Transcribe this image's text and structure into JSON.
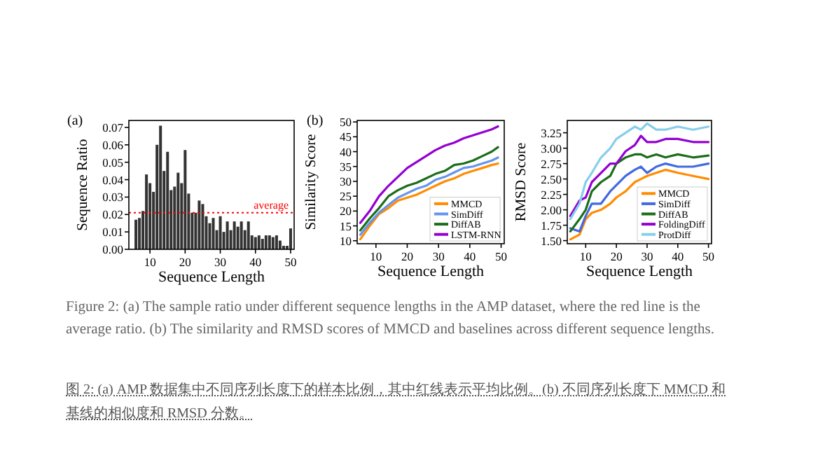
{
  "chart_data": [
    {
      "type": "bar",
      "annotations": [
        "(a)"
      ],
      "xlabel": "Sequence Length",
      "ylabel": "Sequence Ratio",
      "color": "#333333",
      "x": [
        6,
        7,
        8,
        9,
        10,
        11,
        12,
        13,
        14,
        15,
        16,
        17,
        18,
        19,
        20,
        21,
        22,
        23,
        24,
        25,
        26,
        27,
        28,
        29,
        30,
        31,
        32,
        33,
        34,
        35,
        36,
        37,
        38,
        39,
        40,
        41,
        42,
        43,
        44,
        45,
        46,
        47,
        48,
        49,
        50
      ],
      "values": [
        0.017,
        0.018,
        0.022,
        0.043,
        0.038,
        0.033,
        0.06,
        0.071,
        0.045,
        0.056,
        0.034,
        0.036,
        0.044,
        0.038,
        0.057,
        0.032,
        0.021,
        0.021,
        0.028,
        0.026,
        0.019,
        0.015,
        0.018,
        0.011,
        0.019,
        0.01,
        0.016,
        0.011,
        0.016,
        0.013,
        0.016,
        0.011,
        0.016,
        0.008,
        0.007,
        0.008,
        0.006,
        0.008,
        0.008,
        0.007,
        0.008,
        0.005,
        0.002,
        0.002,
        0.012
      ],
      "xlim": [
        4,
        51
      ],
      "ylim": [
        0,
        0.074
      ],
      "xticks": [
        10,
        20,
        30,
        40,
        50
      ],
      "yticks": [
        {
          "value": 0,
          "label": "0.00"
        },
        0.01,
        0.02,
        0.03,
        0.04,
        0.05,
        0.06,
        0.07
      ],
      "ref_lines": [
        {
          "axis": "y",
          "value": 0.021,
          "label": "average",
          "color": "#ff0000",
          "line_style": "dotted"
        }
      ]
    },
    {
      "type": "line",
      "annotations": [
        "(b)"
      ],
      "xlabel": "Sequence Length",
      "ylabel": "Similarity Score",
      "legend": "bottom right",
      "line_style": "solid",
      "x": [
        5,
        8,
        11,
        14,
        17,
        20,
        23,
        26,
        29,
        32,
        35,
        38,
        41,
        44,
        47,
        49
      ],
      "xlim": [
        4,
        51
      ],
      "ylim": [
        9,
        50.5
      ],
      "xticks": [
        10,
        20,
        30,
        40,
        50
      ],
      "yticks": [
        10,
        15,
        20,
        25,
        30,
        35,
        40,
        45,
        50
      ],
      "series": [
        {
          "name": "MMCD",
          "color": "#ff8c00",
          "values": [
            10.5,
            15,
            19,
            21,
            23.5,
            24.5,
            25.5,
            27,
            28.5,
            30,
            31,
            32.5,
            33.5,
            34.5,
            35.5,
            36
          ]
        },
        {
          "name": "SimDiff",
          "color": "#6495ed",
          "values": [
            12,
            16,
            19.5,
            22,
            24.5,
            26,
            27.5,
            28.5,
            30.5,
            31.5,
            33,
            34.5,
            35,
            36,
            37,
            38
          ]
        },
        {
          "name": "DiffAB",
          "color": "#1a6e1a",
          "values": [
            13.5,
            17.5,
            21,
            25,
            27,
            28.5,
            29.5,
            31,
            32.5,
            33.5,
            35.5,
            36,
            37,
            38.5,
            40,
            41.5
          ]
        },
        {
          "name": "LSTM-RNN",
          "color": "#9400d3",
          "values": [
            16,
            20,
            25,
            28.5,
            31.5,
            34.5,
            36.5,
            38.5,
            40.5,
            42,
            43,
            44.5,
            45.5,
            46.5,
            47.5,
            48.5
          ]
        }
      ]
    },
    {
      "type": "line",
      "xlabel": "Sequence Length",
      "ylabel": "RMSD Score",
      "legend": "bottom right",
      "line_style": "solid",
      "annotations": [
        "Figure 2: (a) The sample ratio under different sequence lengths in the AMP dataset, where the red line is the average ratio. (b) The similarity and RMSD scores of MMCD and baselines across different sequence lengths.",
        "图 2: (a) AMP 数据集中不同序列长度下的样本比例，其中红线表示平均比例。(b) 不同序列长度下 MMCD 和基线的相似度和 RMSD 分数。"
      ],
      "x": [
        5,
        8,
        10,
        12,
        15,
        18,
        20,
        23,
        26,
        28,
        30,
        33,
        36,
        40,
        45,
        50
      ],
      "xlim": [
        4,
        51
      ],
      "ylim": [
        1.45,
        3.45
      ],
      "xticks": [
        10,
        20,
        30,
        40,
        50
      ],
      "yticks": [
        {
          "value": 1.5,
          "label": "1.50"
        },
        1.75,
        {
          "value": 2,
          "label": "2.00"
        },
        2.25,
        {
          "value": 2.5,
          "label": "2.50"
        },
        2.75,
        {
          "value": 3,
          "label": "3.00"
        },
        3.25
      ],
      "series": [
        {
          "name": "MMCD",
          "color": "#ff8c00",
          "values": [
            1.52,
            1.6,
            1.85,
            1.95,
            2.0,
            2.1,
            2.2,
            2.3,
            2.45,
            2.5,
            2.55,
            2.6,
            2.65,
            2.6,
            2.55,
            2.5
          ]
        },
        {
          "name": "SimDiff",
          "color": "#4169e1",
          "values": [
            1.7,
            1.65,
            1.9,
            2.1,
            2.1,
            2.3,
            2.4,
            2.55,
            2.65,
            2.7,
            2.6,
            2.7,
            2.75,
            2.7,
            2.7,
            2.75
          ]
        },
        {
          "name": "DiffAB",
          "color": "#1a6e1a",
          "values": [
            1.65,
            1.85,
            2.0,
            2.3,
            2.45,
            2.55,
            2.75,
            2.85,
            2.9,
            2.9,
            2.85,
            2.9,
            2.85,
            2.9,
            2.85,
            2.88
          ]
        },
        {
          "name": "FoldingDiff",
          "color": "#9400d3",
          "values": [
            1.9,
            2.15,
            2.2,
            2.45,
            2.6,
            2.75,
            2.75,
            2.95,
            3.05,
            3.2,
            3.1,
            3.1,
            3.15,
            3.15,
            3.1,
            3.1
          ]
        },
        {
          "name": "ProtDiff",
          "color": "#87ceeb",
          "values": [
            1.85,
            2.1,
            2.45,
            2.6,
            2.85,
            3.0,
            3.15,
            3.25,
            3.35,
            3.3,
            3.4,
            3.3,
            3.3,
            3.35,
            3.3,
            3.35
          ]
        }
      ]
    }
  ]
}
